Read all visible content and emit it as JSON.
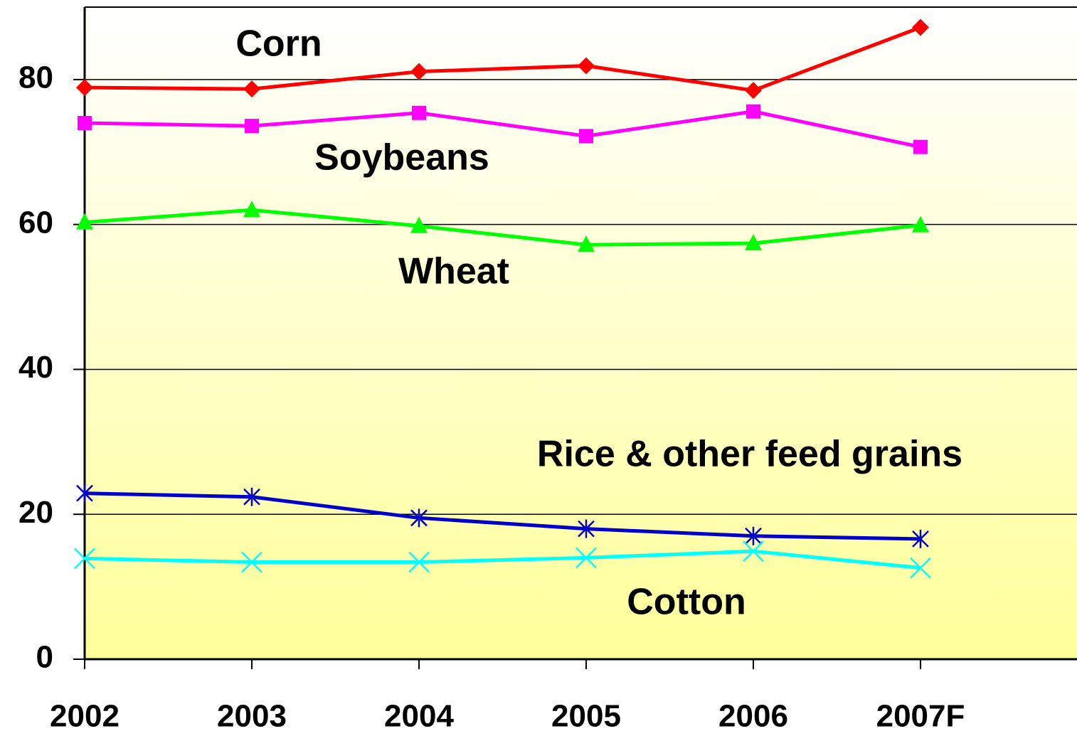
{
  "chart_data": {
    "type": "line",
    "categories": [
      "2002",
      "2003",
      "2004",
      "2005",
      "2006",
      "2007F"
    ],
    "series": [
      {
        "name": "Corn",
        "color": "#ff0000",
        "marker": "diamond",
        "values": [
          78.9,
          78.7,
          81.1,
          81.9,
          78.5,
          87.2
        ]
      },
      {
        "name": "Soybeans",
        "color": "#ff00ff",
        "marker": "square",
        "values": [
          74.0,
          73.6,
          75.4,
          72.2,
          75.6,
          70.7
        ]
      },
      {
        "name": "Wheat",
        "color": "#00ff00",
        "marker": "triangle",
        "values": [
          60.3,
          62.0,
          59.8,
          57.2,
          57.4,
          59.9
        ]
      },
      {
        "name": "Rice & other feed grains",
        "color": "#0000cc",
        "marker": "star",
        "values": [
          22.9,
          22.4,
          19.5,
          18.0,
          17.0,
          16.6
        ]
      },
      {
        "name": "Cotton",
        "color": "#00ffff",
        "marker": "x",
        "values": [
          13.9,
          13.4,
          13.4,
          14.0,
          14.9,
          12.6
        ]
      }
    ],
    "ylim": [
      0,
      90
    ],
    "yticks": [
      0,
      20,
      40,
      60,
      80
    ],
    "grid": true
  }
}
